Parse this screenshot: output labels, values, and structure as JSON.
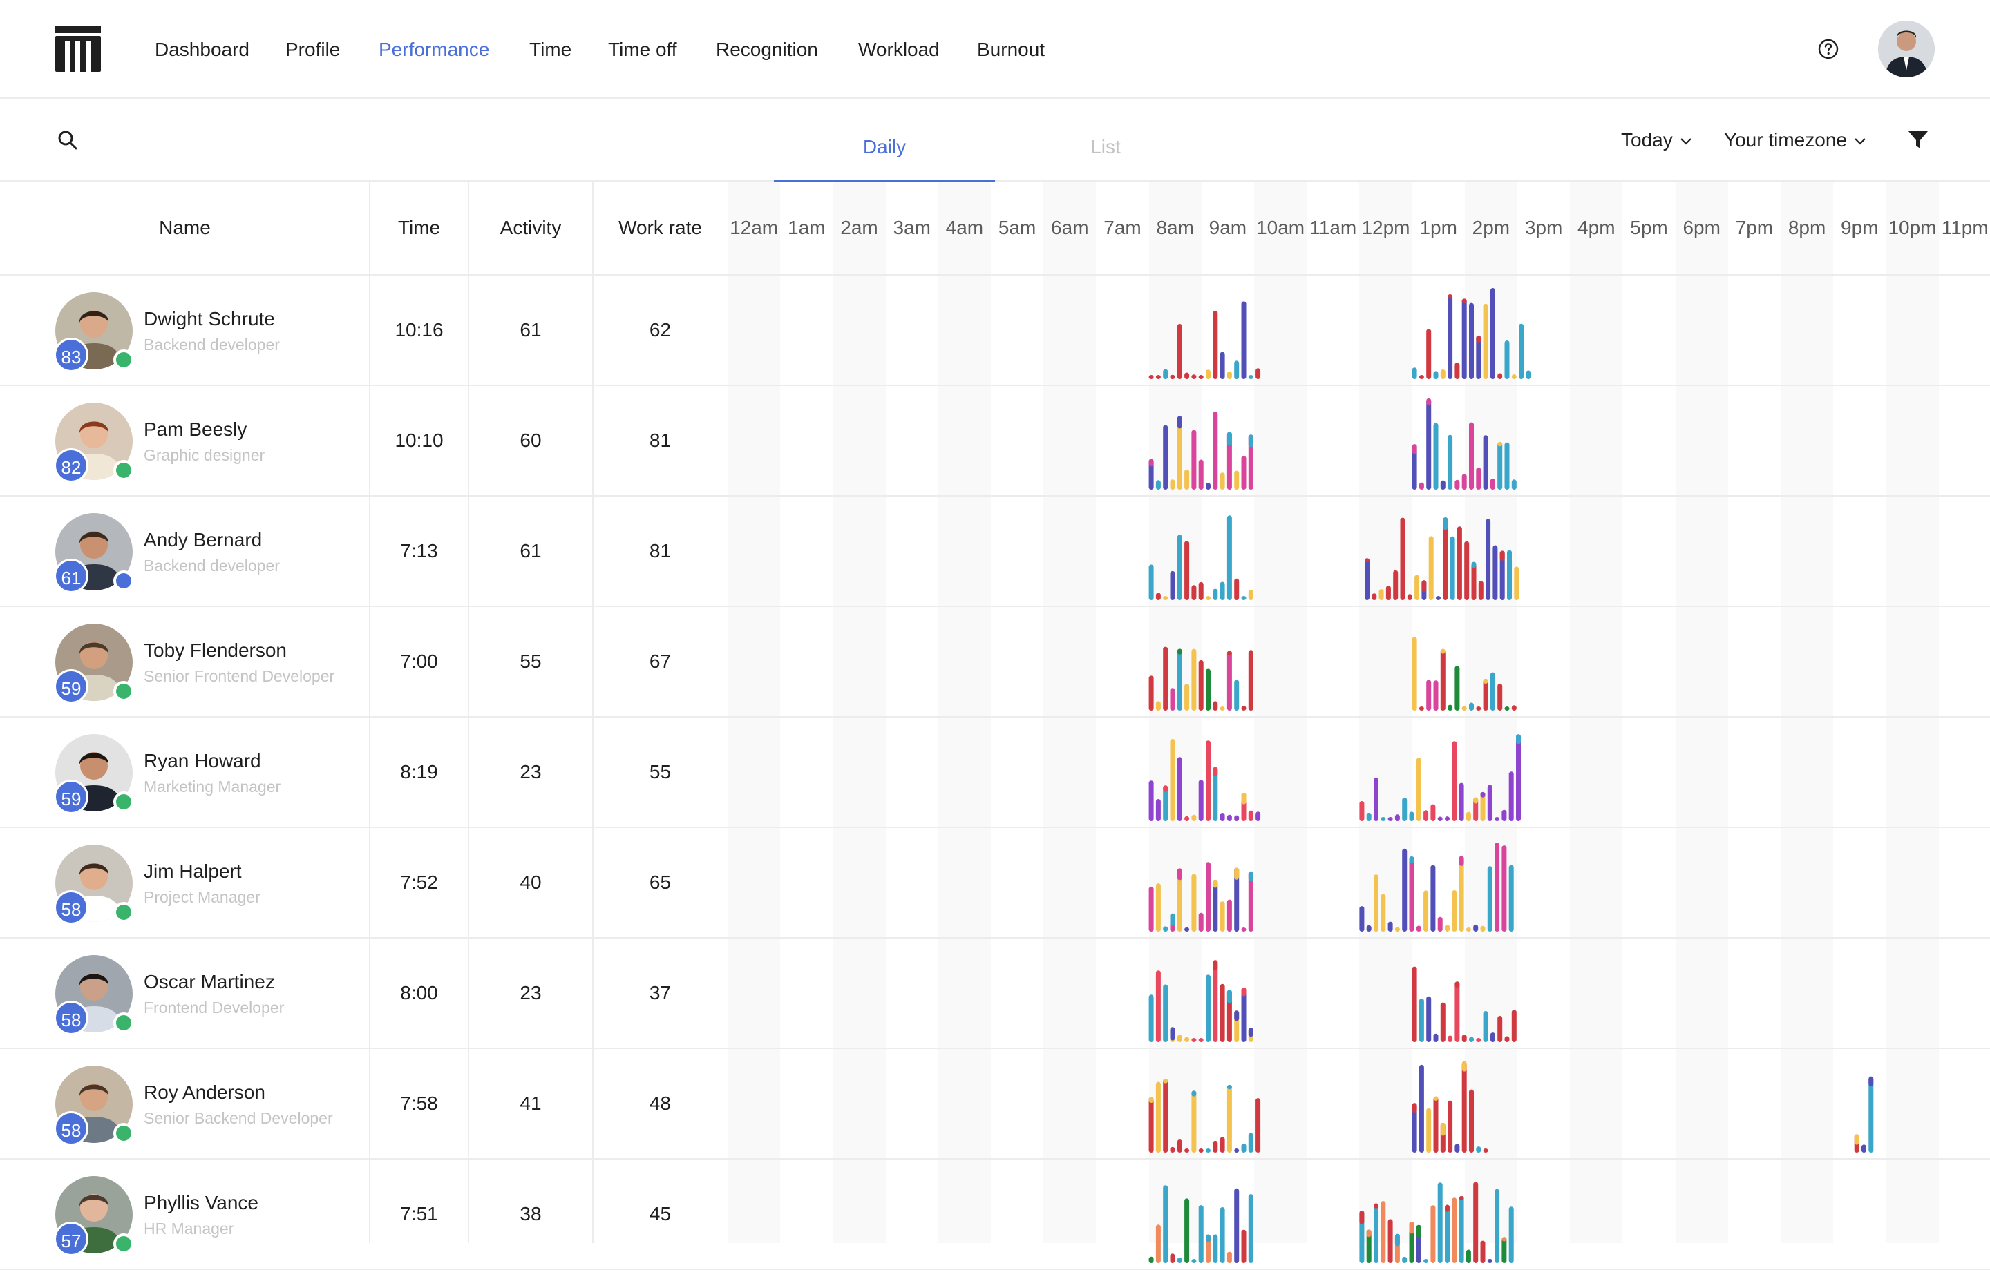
{
  "nav": {
    "items": [
      "Dashboard",
      "Profile",
      "Performance",
      "Time",
      "Time off",
      "Recognition",
      "Workload",
      "Burnout"
    ],
    "active": "Performance"
  },
  "icons": {
    "logo": "logo-mark",
    "help": "question-circle-icon",
    "search": "search-icon",
    "filter": "filter-funnel-icon"
  },
  "tabs": {
    "daily": "Daily",
    "list": "List",
    "active": "Daily"
  },
  "filters": {
    "range": "Today",
    "timezone": "Your timezone"
  },
  "table": {
    "columns": {
      "name": "Name",
      "time": "Time",
      "activity": "Activity",
      "work_rate": "Work rate"
    },
    "hours": [
      "12am",
      "1am",
      "2am",
      "3am",
      "4am",
      "5am",
      "6am",
      "7am",
      "8am",
      "9am",
      "10am",
      "11am",
      "12pm",
      "1pm",
      "2pm",
      "3pm",
      "4pm",
      "5pm",
      "6pm",
      "7pm",
      "8pm",
      "9pm",
      "10pm",
      "11pm"
    ],
    "rows": [
      {
        "name": "Dwight Schrute",
        "role": "Backend developer",
        "score": "83",
        "time": "10:16",
        "activity": "61",
        "work_rate": "62",
        "status": "online",
        "palette": [
          "#d0393f",
          "#f3c24f",
          "#3aa6c9",
          "#5250b8"
        ],
        "segments": [
          [
            8.0,
            10.1,
            0.75
          ],
          [
            13.0,
            15.2,
            0.8
          ]
        ]
      },
      {
        "name": "Pam Beesly",
        "role": "Graphic designer",
        "score": "82",
        "time": "10:10",
        "activity": "60",
        "work_rate": "81",
        "status": "online",
        "palette": [
          "#d8459a",
          "#3aa6c9",
          "#f3c24f",
          "#5250b8"
        ],
        "segments": [
          [
            8.0,
            10.0,
            0.7
          ],
          [
            13.0,
            14.9,
            0.7
          ]
        ]
      },
      {
        "name": "Andy Bernard",
        "role": "Backend developer",
        "score": "61",
        "time": "7:13",
        "activity": "61",
        "work_rate": "81",
        "status": "away",
        "palette": [
          "#d0393f",
          "#3aa6c9",
          "#f3c24f",
          "#5250b8"
        ],
        "segments": [
          [
            8.0,
            10.0,
            0.7
          ],
          [
            12.1,
            15.0,
            0.72
          ]
        ]
      },
      {
        "name": "Toby Flenderson",
        "role": "Senior Frontend Developer",
        "score": "59",
        "time": "7:00",
        "activity": "55",
        "work_rate": "67",
        "status": "online",
        "palette": [
          "#d0393f",
          "#f3c24f",
          "#3aa6c9",
          "#1f8a3a",
          "#d8459a"
        ],
        "segments": [
          [
            8.0,
            10.0,
            0.5
          ],
          [
            13.0,
            14.9,
            0.45
          ]
        ]
      },
      {
        "name": "Ryan Howard",
        "role": "Marketing Manager",
        "score": "59",
        "time": "8:19",
        "activity": "23",
        "work_rate": "55",
        "status": "online",
        "palette": [
          "#8f44d0",
          "#3aa6c9",
          "#e8475e",
          "#f3c24f"
        ],
        "segments": [
          [
            8.0,
            10.1,
            0.55
          ],
          [
            12.0,
            15.0,
            0.7
          ]
        ]
      },
      {
        "name": "Jim Halpert",
        "role": "Project Manager",
        "score": "58",
        "time": "7:52",
        "activity": "40",
        "work_rate": "65",
        "status": "online",
        "palette": [
          "#5250b8",
          "#f3c24f",
          "#d8459a",
          "#3aa6c9"
        ],
        "segments": [
          [
            8.0,
            10.0,
            0.55
          ],
          [
            12.0,
            14.9,
            0.65
          ]
        ]
      },
      {
        "name": "Oscar Martinez",
        "role": "Frontend Developer",
        "score": "58",
        "time": "8:00",
        "activity": "23",
        "work_rate": "37",
        "status": "online",
        "palette": [
          "#d0393f",
          "#3aa6c9",
          "#f3c24f",
          "#5250b8",
          "#e8475e"
        ],
        "segments": [
          [
            8.0,
            10.0,
            0.5
          ],
          [
            13.0,
            14.9,
            0.45
          ]
        ]
      },
      {
        "name": "Roy Anderson",
        "role": "Senior Backend Developer",
        "score": "58",
        "time": "7:58",
        "activity": "41",
        "work_rate": "48",
        "status": "online",
        "palette": [
          "#d0393f",
          "#f3c24f",
          "#3aa6c9",
          "#5250b8"
        ],
        "segments": [
          [
            8.0,
            10.1,
            0.6
          ],
          [
            13.0,
            14.4,
            0.68
          ],
          [
            21.4,
            21.8,
            0.45
          ]
        ]
      },
      {
        "name": "Phyllis Vance",
        "role": "HR Manager",
        "score": "57",
        "time": "7:51",
        "activity": "38",
        "work_rate": "45",
        "status": "online",
        "palette": [
          "#3aa6c9",
          "#d0393f",
          "#5250b8",
          "#1f8a3a",
          "#f08a5d"
        ],
        "segments": [
          [
            8.0,
            10.0,
            0.45
          ],
          [
            12.0,
            14.9,
            0.7
          ]
        ]
      }
    ]
  }
}
